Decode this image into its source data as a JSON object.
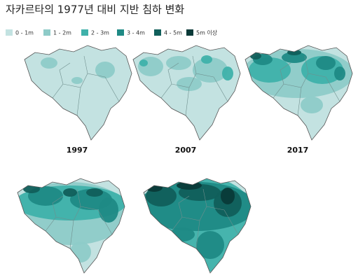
{
  "title": "자카르타의 1977년 대비 지반 침하 변화",
  "legend": [
    {
      "label": "0 - 1m",
      "color": "#c3e2e1"
    },
    {
      "label": "1 - 2m",
      "color": "#8ecbc8"
    },
    {
      "label": "2 - 3m",
      "color": "#3fb1aa"
    },
    {
      "label": "3 - 4m",
      "color": "#1f8a85"
    },
    {
      "label": "4 - 5m",
      "color": "#115f5b"
    },
    {
      "label": "5m 이상",
      "color": "#0a3a38"
    }
  ],
  "maps": [
    {
      "label": "1997"
    },
    {
      "label": "2007"
    },
    {
      "label": "2017"
    },
    {
      "label": null
    },
    {
      "label": null
    }
  ]
}
